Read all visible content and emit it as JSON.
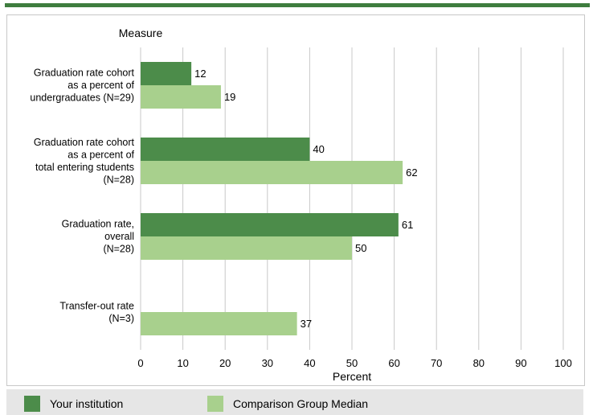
{
  "colors": {
    "your_institution": "#4c8c4a",
    "comparison": "#a8d08d",
    "grid": "#c8c8c8",
    "accent": "#3e7d3e"
  },
  "chart_data": {
    "type": "bar",
    "orientation": "horizontal",
    "ylabel": "Measure",
    "xlabel": "Percent",
    "xlim": [
      0,
      100
    ],
    "xticks": [
      "0",
      "10",
      "20",
      "30",
      "40",
      "50",
      "60",
      "70",
      "80",
      "90",
      "100"
    ],
    "grid": true,
    "legend_position": "bottom",
    "categories": [
      [
        "Graduation rate cohort",
        "as a percent of",
        "undergraduates (N=29)"
      ],
      [
        "Graduation rate cohort",
        "as a percent of",
        "total entering students",
        "(N=28)"
      ],
      [
        "Graduation rate,",
        "overall",
        "(N=28)"
      ],
      [
        "Transfer-out rate",
        "(N=3)"
      ]
    ],
    "series": [
      {
        "name": "Your institution",
        "values": [
          12,
          40,
          61,
          null
        ]
      },
      {
        "name": "Comparison Group Median",
        "values": [
          19,
          62,
          50,
          37
        ]
      }
    ]
  }
}
